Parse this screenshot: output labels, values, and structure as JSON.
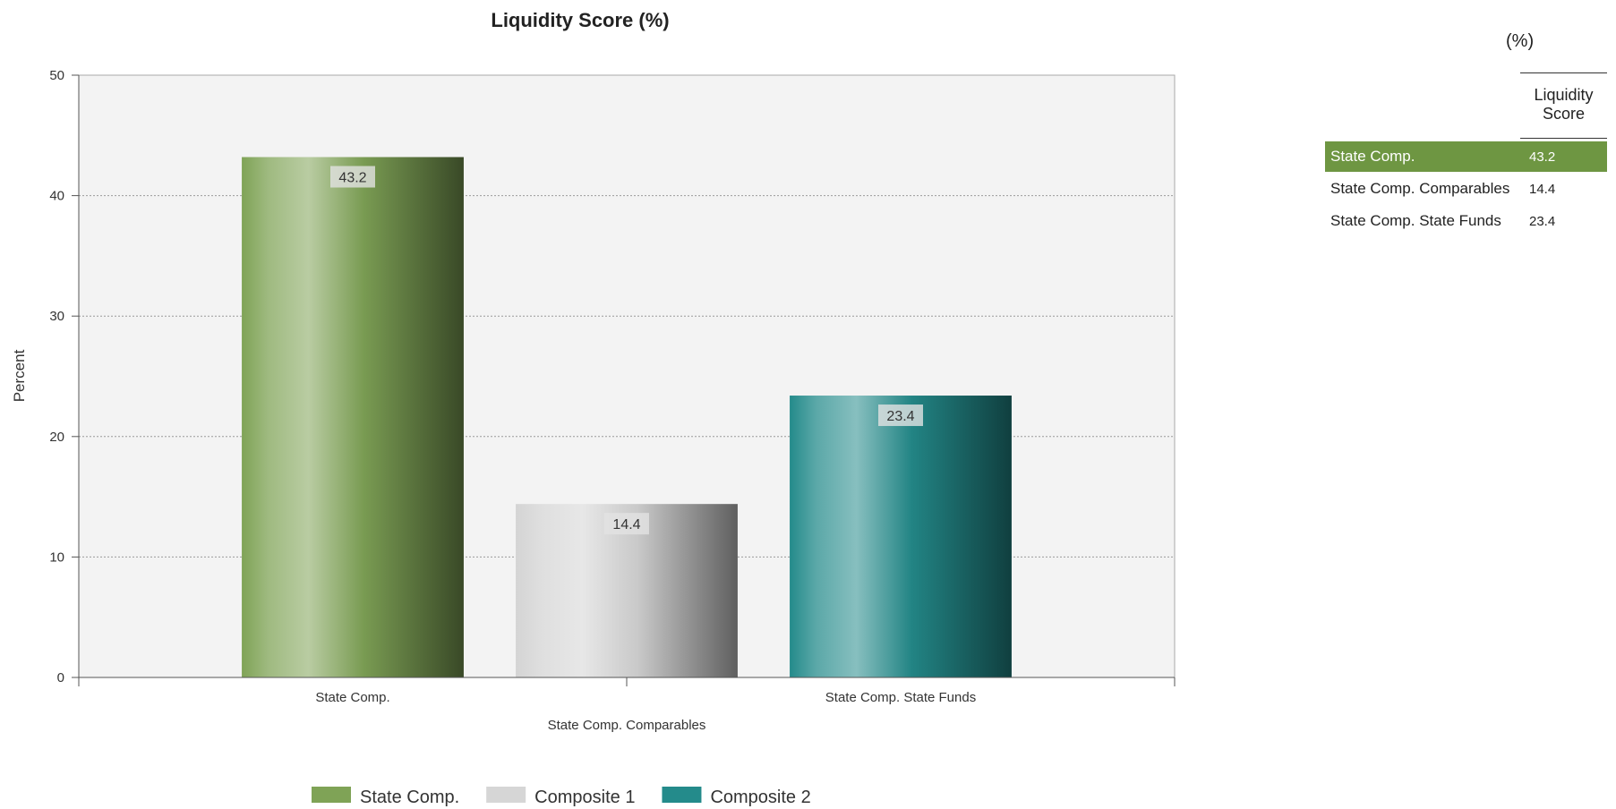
{
  "chart_data": {
    "type": "bar",
    "title": "Liquidity Score (%)",
    "ylabel": "Percent",
    "ylim": [
      0,
      50
    ],
    "yticks": [
      "0",
      "10",
      "20",
      "30",
      "40",
      "50"
    ],
    "grid": true,
    "categories": [
      "State Comp.",
      "State Comp. Comparables",
      "State Comp. State Funds"
    ],
    "values": [
      43.2,
      14.4,
      23.4
    ],
    "data_labels": [
      "43.2",
      "14.4",
      "23.4"
    ],
    "bar_colors": [
      "#7fa356",
      "#d4d4d4",
      "#248b8b"
    ],
    "legend": {
      "placement": "bottom",
      "items": [
        {
          "label": "State Comp.",
          "color": "#7fa356"
        },
        {
          "label": "Composite 1",
          "color": "#d6d6d6"
        },
        {
          "label": "Composite 2",
          "color": "#248b8b"
        }
      ]
    }
  },
  "table": {
    "unit": "(%)",
    "header": "Liquidity Score",
    "rows": [
      {
        "name": "State Comp.",
        "value": "43.2",
        "highlight": true
      },
      {
        "name": "State Comp. Comparables",
        "value": "14.4",
        "highlight": false
      },
      {
        "name": "State Comp. State Funds",
        "value": "23.4",
        "highlight": false
      }
    ],
    "highlight_color": "#6e9642"
  }
}
